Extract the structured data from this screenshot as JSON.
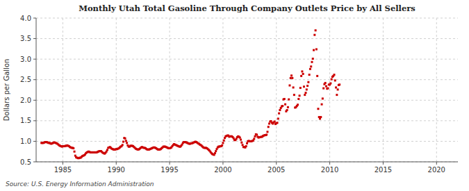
{
  "chart_data": {
    "type": "scatter",
    "title": "Monthly Utah Total Gasoline Through Company Outlets Price by All Sellers",
    "y_label": "Dollars per Gallon",
    "annotations": [
      "Source: U.S. Energy Information Administration"
    ],
    "color": "#cc0000",
    "marker": "square",
    "grid": true,
    "xlim": [
      1982.5,
      2022
    ],
    "ylim": [
      0.5,
      4.0
    ],
    "xticks": [
      1985,
      1990,
      1995,
      2000,
      2005,
      2010,
      2015,
      2020
    ],
    "yticks": [
      0.5,
      {
        "value": 1.0,
        "label": "1.0"
      },
      1.5,
      {
        "value": 2.0,
        "label": "2.0"
      },
      2.5,
      {
        "value": 3.0,
        "label": "3.0"
      },
      3.5,
      {
        "value": 4.0,
        "label": "4.0"
      }
    ],
    "x": [
      1983.0,
      1983.083,
      1983.167,
      1983.25,
      1983.333,
      1983.417,
      1983.5,
      1983.583,
      1983.667,
      1983.75,
      1983.833,
      1983.917,
      1984.0,
      1984.083,
      1984.167,
      1984.25,
      1984.333,
      1984.417,
      1984.5,
      1984.583,
      1984.667,
      1984.75,
      1984.833,
      1984.917,
      1985.0,
      1985.083,
      1985.167,
      1985.25,
      1985.333,
      1985.417,
      1985.5,
      1985.583,
      1985.667,
      1985.75,
      1985.833,
      1985.917,
      1986.0,
      1986.083,
      1986.167,
      1986.25,
      1986.333,
      1986.417,
      1986.5,
      1986.583,
      1986.667,
      1986.75,
      1986.833,
      1986.917,
      1987.0,
      1987.083,
      1987.167,
      1987.25,
      1987.333,
      1987.417,
      1987.5,
      1987.583,
      1987.667,
      1987.75,
      1987.833,
      1987.917,
      1988.0,
      1988.083,
      1988.167,
      1988.25,
      1988.333,
      1988.417,
      1988.5,
      1988.583,
      1988.667,
      1988.75,
      1988.833,
      1988.917,
      1989.0,
      1989.083,
      1989.167,
      1989.25,
      1989.333,
      1989.417,
      1989.5,
      1989.583,
      1989.667,
      1989.75,
      1989.833,
      1989.917,
      1990.0,
      1990.083,
      1990.167,
      1990.25,
      1990.333,
      1990.417,
      1990.5,
      1990.583,
      1990.667,
      1990.75,
      1990.833,
      1990.917,
      1991.0,
      1991.083,
      1991.167,
      1991.25,
      1991.333,
      1991.417,
      1991.5,
      1991.583,
      1991.667,
      1991.75,
      1991.833,
      1991.917,
      1992.0,
      1992.083,
      1992.167,
      1992.25,
      1992.333,
      1992.417,
      1992.5,
      1992.583,
      1992.667,
      1992.75,
      1992.833,
      1992.917,
      1993.0,
      1993.083,
      1993.167,
      1993.25,
      1993.333,
      1993.417,
      1993.5,
      1993.583,
      1993.667,
      1993.75,
      1993.833,
      1993.917,
      1994.0,
      1994.083,
      1994.167,
      1994.25,
      1994.333,
      1994.417,
      1994.5,
      1994.583,
      1994.667,
      1994.75,
      1994.833,
      1994.917,
      1995.0,
      1995.083,
      1995.167,
      1995.25,
      1995.333,
      1995.417,
      1995.5,
      1995.583,
      1995.667,
      1995.75,
      1995.833,
      1995.917,
      1996.0,
      1996.083,
      1996.167,
      1996.25,
      1996.333,
      1996.417,
      1996.5,
      1996.583,
      1996.667,
      1996.75,
      1996.833,
      1996.917,
      1997.0,
      1997.083,
      1997.167,
      1997.25,
      1997.333,
      1997.417,
      1997.5,
      1997.583,
      1997.667,
      1997.75,
      1997.833,
      1997.917,
      1998.0,
      1998.083,
      1998.167,
      1998.25,
      1998.333,
      1998.417,
      1998.5,
      1998.583,
      1998.667,
      1998.75,
      1998.833,
      1998.917,
      1999.0,
      1999.083,
      1999.167,
      1999.25,
      1999.333,
      1999.417,
      1999.5,
      1999.583,
      1999.667,
      1999.75,
      1999.833,
      1999.917,
      2000.0,
      2000.083,
      2000.167,
      2000.25,
      2000.333,
      2000.417,
      2000.5,
      2000.583,
      2000.667,
      2000.75,
      2000.833,
      2000.917,
      2001.0,
      2001.083,
      2001.167,
      2001.25,
      2001.333,
      2001.417,
      2001.5,
      2001.583,
      2001.667,
      2001.75,
      2001.833,
      2001.917,
      2002.0,
      2002.083,
      2002.167,
      2002.25,
      2002.333,
      2002.417,
      2002.5,
      2002.583,
      2002.667,
      2002.75,
      2002.833,
      2002.917,
      2003.0,
      2003.083,
      2003.167,
      2003.25,
      2003.333,
      2003.417,
      2003.5,
      2003.583,
      2003.667,
      2003.75,
      2003.833,
      2003.917,
      2004.0,
      2004.083,
      2004.167,
      2004.25,
      2004.333,
      2004.417,
      2004.5,
      2004.583,
      2004.667,
      2004.75,
      2004.833,
      2004.917,
      2005.0,
      2005.083,
      2005.167,
      2005.25,
      2005.333,
      2005.417,
      2005.5,
      2005.583,
      2005.667,
      2005.75,
      2005.833,
      2005.917,
      2006.0,
      2006.083,
      2006.167,
      2006.25,
      2006.333,
      2006.417,
      2006.5,
      2006.583,
      2006.667,
      2006.75,
      2006.833,
      2006.917,
      2007.0,
      2007.083,
      2007.167,
      2007.25,
      2007.333,
      2007.417,
      2007.5,
      2007.583,
      2007.667,
      2007.75,
      2007.833,
      2007.917,
      2008.0,
      2008.083,
      2008.167,
      2008.25,
      2008.333,
      2008.417,
      2008.5,
      2008.583,
      2008.667,
      2008.75,
      2008.833,
      2008.917,
      2009.0,
      2009.083,
      2009.167,
      2009.25,
      2009.333,
      2009.417,
      2009.5,
      2009.583,
      2009.667,
      2009.75,
      2009.833,
      2009.917,
      2010.0,
      2010.083,
      2010.167,
      2010.25,
      2010.333,
      2010.417,
      2010.5,
      2010.583,
      2010.667,
      2010.75,
      2010.833,
      2010.917
    ],
    "values": [
      0.96,
      0.96,
      0.96,
      0.97,
      0.98,
      0.98,
      0.98,
      0.97,
      0.96,
      0.96,
      0.95,
      0.94,
      0.95,
      0.96,
      0.97,
      0.97,
      0.96,
      0.95,
      0.94,
      0.92,
      0.9,
      0.89,
      0.88,
      0.87,
      0.88,
      0.88,
      0.88,
      0.89,
      0.89,
      0.9,
      0.89,
      0.88,
      0.86,
      0.85,
      0.84,
      0.84,
      0.83,
      0.75,
      0.65,
      0.61,
      0.6,
      0.59,
      0.59,
      0.6,
      0.6,
      0.62,
      0.64,
      0.65,
      0.66,
      0.68,
      0.71,
      0.73,
      0.74,
      0.75,
      0.74,
      0.73,
      0.73,
      0.73,
      0.73,
      0.73,
      0.73,
      0.73,
      0.73,
      0.74,
      0.75,
      0.76,
      0.76,
      0.76,
      0.74,
      0.72,
      0.71,
      0.7,
      0.72,
      0.75,
      0.79,
      0.84,
      0.85,
      0.86,
      0.84,
      0.82,
      0.81,
      0.8,
      0.8,
      0.8,
      0.81,
      0.81,
      0.82,
      0.83,
      0.85,
      0.87,
      0.88,
      0.91,
      0.99,
      1.08,
      1.07,
      1.01,
      0.96,
      0.9,
      0.87,
      0.87,
      0.89,
      0.89,
      0.89,
      0.88,
      0.86,
      0.84,
      0.82,
      0.81,
      0.8,
      0.8,
      0.81,
      0.83,
      0.85,
      0.86,
      0.85,
      0.84,
      0.84,
      0.83,
      0.81,
      0.8,
      0.8,
      0.8,
      0.81,
      0.82,
      0.83,
      0.84,
      0.85,
      0.85,
      0.84,
      0.83,
      0.81,
      0.8,
      0.8,
      0.8,
      0.81,
      0.83,
      0.85,
      0.87,
      0.87,
      0.87,
      0.86,
      0.85,
      0.84,
      0.83,
      0.83,
      0.84,
      0.85,
      0.88,
      0.91,
      0.93,
      0.92,
      0.91,
      0.9,
      0.89,
      0.88,
      0.87,
      0.87,
      0.89,
      0.92,
      0.96,
      0.98,
      0.98,
      0.98,
      0.97,
      0.96,
      0.95,
      0.94,
      0.94,
      0.95,
      0.95,
      0.96,
      0.97,
      0.98,
      0.99,
      0.98,
      0.97,
      0.95,
      0.94,
      0.92,
      0.91,
      0.89,
      0.87,
      0.85,
      0.84,
      0.84,
      0.84,
      0.83,
      0.81,
      0.79,
      0.77,
      0.74,
      0.71,
      0.69,
      0.68,
      0.67,
      0.71,
      0.76,
      0.81,
      0.85,
      0.87,
      0.87,
      0.88,
      0.88,
      0.9,
      0.96,
      1.02,
      1.08,
      1.12,
      1.13,
      1.14,
      1.14,
      1.11,
      1.12,
      1.12,
      1.12,
      1.1,
      1.07,
      1.03,
      1.03,
      1.06,
      1.1,
      1.12,
      1.11,
      1.09,
      1.04,
      0.97,
      0.91,
      0.86,
      0.86,
      0.85,
      0.88,
      0.95,
      1.0,
      1.01,
      1.0,
      1.0,
      1.0,
      1.01,
      1.02,
      1.06,
      1.12,
      1.17,
      1.16,
      1.11,
      1.09,
      1.1,
      1.1,
      1.11,
      1.11,
      1.13,
      1.14,
      1.15,
      1.15,
      1.16,
      1.23,
      1.35,
      1.43,
      1.48,
      1.49,
      1.45,
      1.43,
      1.46,
      1.48,
      1.42,
      1.44,
      1.45,
      1.55,
      1.68,
      1.76,
      1.81,
      1.85,
      1.86,
      2.02,
      2.03,
      1.9,
      1.73,
      1.76,
      1.83,
      2.02,
      2.36,
      2.54,
      2.6,
      2.54,
      2.31,
      2.13,
      1.82,
      1.83,
      1.86,
      1.89,
      2.03,
      2.11,
      2.3,
      2.59,
      2.7,
      2.64,
      2.33,
      2.13,
      2.18,
      2.26,
      2.35,
      2.44,
      2.62,
      2.76,
      2.82,
      2.93,
      3.01,
      3.22,
      3.59,
      3.7,
      3.24,
      2.59,
      1.79,
      1.59,
      1.55,
      1.59,
      1.9,
      2.04,
      2.29,
      2.39,
      2.42,
      2.34,
      2.28,
      2.29,
      2.38,
      2.38,
      2.41,
      2.51,
      2.57,
      2.59,
      2.62,
      2.48,
      2.31,
      2.13,
      2.26,
      2.37,
      2.38
    ]
  }
}
